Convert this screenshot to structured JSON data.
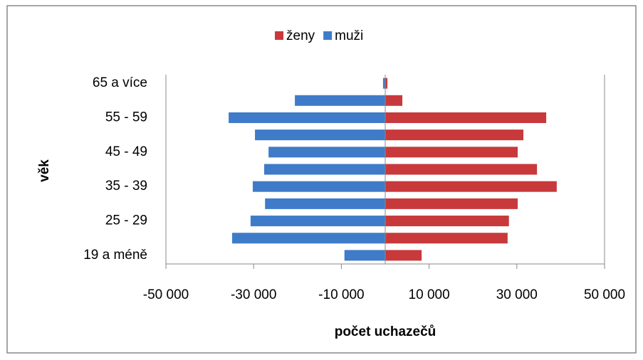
{
  "chart_data": {
    "type": "bar",
    "orientation": "horizontal",
    "xlabel": "počet uchazečů",
    "ylabel": "věk",
    "categories": [
      "19 a méně",
      null,
      "25 - 29",
      null,
      "35 - 39",
      null,
      "45 - 49",
      null,
      "55 - 59",
      null,
      "65 a více"
    ],
    "series": [
      {
        "name": "ženy",
        "color": "#c8393b",
        "values": [
          8300,
          27900,
          28200,
          30200,
          39100,
          34600,
          30200,
          31500,
          36700,
          3900,
          500
        ]
      },
      {
        "name": "muži",
        "color": "#3f7bc8",
        "values": [
          -9300,
          -34900,
          -30700,
          -27400,
          -30200,
          -27600,
          -26600,
          -29700,
          -35700,
          -20600,
          -500
        ]
      }
    ],
    "xlim": [
      -50000,
      50000
    ],
    "xticks": [
      {
        "value": -50000,
        "label": "-50 000"
      },
      {
        "value": -30000,
        "label": "-30 000"
      },
      {
        "value": -10000,
        "label": "-10 000"
      },
      {
        "value": 10000,
        "label": "10 000"
      },
      {
        "value": 30000,
        "label": "30 000"
      },
      {
        "value": 50000,
        "label": "50 000"
      }
    ],
    "legend": "top"
  }
}
